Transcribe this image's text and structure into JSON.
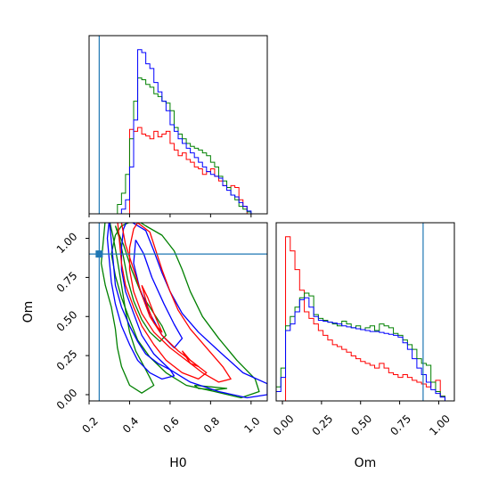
{
  "chart_data": {
    "type": "corner",
    "params": [
      "H0",
      "Om"
    ],
    "truth": {
      "H0": 0.25,
      "Om": 0.9
    },
    "truth_color": "#1f77b4",
    "series_colors": {
      "red": "#ff0000",
      "green": "#008000",
      "blue": "#0000ff"
    },
    "axes": {
      "H0": {
        "label": "H0",
        "range": [
          0.2,
          1.08
        ],
        "ticks": [
          0.2,
          0.4,
          0.6,
          0.8,
          1.0
        ],
        "tick_labels": [
          "0.2",
          "0.4",
          "0.6",
          "0.8",
          "1.0"
        ]
      },
      "Om": {
        "label": "Om",
        "range": [
          -0.04,
          1.1
        ],
        "ticks": [
          0.0,
          0.25,
          0.5,
          0.75,
          1.0
        ],
        "tick_labels": [
          "0.00",
          "0.25",
          "0.50",
          "0.75",
          "1.00"
        ]
      }
    },
    "hist_H0": {
      "edges": [
        0.2,
        0.22,
        0.24,
        0.26,
        0.28,
        0.3,
        0.32,
        0.34,
        0.36,
        0.38,
        0.4,
        0.42,
        0.44,
        0.46,
        0.48,
        0.5,
        0.52,
        0.54,
        0.56,
        0.58,
        0.6,
        0.62,
        0.64,
        0.66,
        0.68,
        0.7,
        0.72,
        0.74,
        0.76,
        0.78,
        0.8,
        0.82,
        0.84,
        0.86,
        0.88,
        0.9,
        0.92,
        0.94,
        0.96,
        0.98,
        1.0,
        1.02,
        1.04,
        1.06,
        1.08
      ],
      "ymax": 190,
      "series": [
        {
          "color": "red",
          "counts": [
            0,
            0,
            0,
            0,
            0,
            0,
            0,
            0,
            0,
            0,
            90,
            88,
            92,
            85,
            83,
            80,
            88,
            82,
            85,
            88,
            75,
            68,
            62,
            65,
            58,
            55,
            50,
            48,
            42,
            45,
            48,
            40,
            35,
            30,
            28,
            30,
            28,
            15,
            8,
            0,
            0,
            0,
            0,
            0
          ]
        },
        {
          "color": "green",
          "counts": [
            0,
            0,
            0,
            0,
            0,
            0,
            0,
            10,
            22,
            42,
            80,
            120,
            145,
            143,
            138,
            135,
            128,
            125,
            120,
            118,
            110,
            92,
            85,
            80,
            75,
            72,
            70,
            68,
            65,
            62,
            55,
            50,
            40,
            35,
            28,
            20,
            15,
            8,
            5,
            2,
            0,
            0,
            0,
            0
          ]
        },
        {
          "color": "blue",
          "counts": [
            0,
            0,
            0,
            0,
            0,
            0,
            0,
            0,
            5,
            15,
            50,
            100,
            175,
            172,
            160,
            155,
            140,
            130,
            120,
            110,
            95,
            88,
            80,
            75,
            70,
            65,
            60,
            55,
            50,
            45,
            42,
            40,
            38,
            30,
            25,
            20,
            18,
            12,
            8,
            3,
            0,
            0,
            0,
            0
          ]
        }
      ]
    },
    "hist_Om": {
      "edges": [
        -0.04,
        -0.01,
        0.02,
        0.05,
        0.08,
        0.11,
        0.14,
        0.17,
        0.2,
        0.23,
        0.26,
        0.29,
        0.32,
        0.35,
        0.38,
        0.41,
        0.44,
        0.47,
        0.5,
        0.53,
        0.56,
        0.59,
        0.62,
        0.65,
        0.68,
        0.71,
        0.74,
        0.77,
        0.8,
        0.83,
        0.86,
        0.89,
        0.92,
        0.95,
        0.98,
        1.01,
        1.04,
        1.07,
        1.1
      ],
      "ymax": 190,
      "series": [
        {
          "color": "red",
          "counts": [
            0,
            0,
            175,
            160,
            140,
            118,
            95,
            88,
            82,
            75,
            70,
            65,
            60,
            58,
            55,
            52,
            48,
            45,
            42,
            40,
            38,
            35,
            40,
            35,
            30,
            28,
            25,
            28,
            25,
            22,
            20,
            18,
            15,
            20,
            22,
            5,
            0,
            0
          ]
        },
        {
          "color": "green",
          "counts": [
            15,
            35,
            80,
            90,
            100,
            110,
            115,
            112,
            92,
            88,
            86,
            84,
            82,
            80,
            85,
            82,
            78,
            80,
            76,
            78,
            80,
            75,
            82,
            80,
            78,
            72,
            70,
            65,
            60,
            55,
            45,
            40,
            38,
            20,
            10,
            5,
            0,
            0
          ]
        },
        {
          "color": "blue",
          "counts": [
            10,
            25,
            75,
            82,
            95,
            108,
            110,
            100,
            90,
            86,
            85,
            84,
            83,
            82,
            80,
            79,
            78,
            77,
            76,
            75,
            74,
            74,
            73,
            72,
            71,
            70,
            68,
            62,
            55,
            45,
            35,
            28,
            20,
            12,
            8,
            4,
            0,
            0
          ]
        }
      ]
    },
    "contours": [
      {
        "color": "green",
        "points": [
          [
            0.43,
            1.12
          ],
          [
            0.48,
            1.08
          ],
          [
            0.56,
            1.02
          ],
          [
            0.62,
            0.92
          ],
          [
            0.66,
            0.8
          ],
          [
            0.7,
            0.66
          ],
          [
            0.76,
            0.5
          ],
          [
            0.84,
            0.36
          ],
          [
            0.93,
            0.22
          ],
          [
            1.02,
            0.1
          ],
          [
            1.04,
            0.02
          ],
          [
            0.95,
            -0.02
          ],
          [
            0.82,
            0.02
          ],
          [
            0.68,
            0.06
          ],
          [
            0.58,
            0.14
          ],
          [
            0.5,
            0.24
          ],
          [
            0.44,
            0.35
          ],
          [
            0.4,
            0.48
          ],
          [
            0.36,
            0.62
          ],
          [
            0.33,
            0.76
          ],
          [
            0.31,
            0.9
          ],
          [
            0.33,
            1.02
          ],
          [
            0.36,
            1.08
          ],
          [
            0.43,
            1.12
          ]
        ]
      },
      {
        "color": "green",
        "points": [
          [
            0.28,
            1.12
          ],
          [
            0.27,
            0.98
          ],
          [
            0.26,
            0.84
          ],
          [
            0.28,
            0.7
          ],
          [
            0.31,
            0.56
          ],
          [
            0.33,
            0.42
          ],
          [
            0.34,
            0.3
          ],
          [
            0.36,
            0.18
          ],
          [
            0.4,
            0.06
          ],
          [
            0.46,
            0.01
          ],
          [
            0.52,
            0.06
          ],
          [
            0.48,
            0.16
          ],
          [
            0.43,
            0.28
          ],
          [
            0.4,
            0.4
          ],
          [
            0.38,
            0.54
          ],
          [
            0.36,
            0.7
          ],
          [
            0.34,
            0.86
          ],
          [
            0.32,
            1.0
          ],
          [
            0.3,
            1.12
          ]
        ]
      },
      {
        "color": "green",
        "points": [
          [
            0.33,
            1.08
          ],
          [
            0.37,
            0.96
          ],
          [
            0.41,
            0.8
          ],
          [
            0.46,
            0.64
          ],
          [
            0.52,
            0.52
          ],
          [
            0.56,
            0.44
          ],
          [
            0.58,
            0.38
          ],
          [
            0.55,
            0.34
          ],
          [
            0.5,
            0.4
          ],
          [
            0.46,
            0.48
          ],
          [
            0.42,
            0.6
          ],
          [
            0.39,
            0.74
          ],
          [
            0.37,
            0.88
          ],
          [
            0.35,
            1.0
          ],
          [
            0.33,
            1.08
          ]
        ]
      },
      {
        "color": "green",
        "points": [
          [
            0.72,
            0.06
          ],
          [
            0.8,
            0.05
          ],
          [
            0.88,
            0.04
          ],
          [
            0.82,
            0.03
          ],
          [
            0.74,
            0.04
          ],
          [
            0.72,
            0.06
          ]
        ]
      },
      {
        "color": "blue",
        "points": [
          [
            0.39,
            1.12
          ],
          [
            0.48,
            1.05
          ],
          [
            0.52,
            0.92
          ],
          [
            0.56,
            0.78
          ],
          [
            0.6,
            0.66
          ],
          [
            0.66,
            0.52
          ],
          [
            0.74,
            0.4
          ],
          [
            0.84,
            0.28
          ],
          [
            0.96,
            0.14
          ],
          [
            1.08,
            0.07
          ],
          [
            1.08,
            0.0
          ],
          [
            0.98,
            -0.02
          ],
          [
            0.84,
            0.02
          ],
          [
            0.7,
            0.08
          ],
          [
            0.6,
            0.16
          ],
          [
            0.52,
            0.26
          ],
          [
            0.46,
            0.38
          ],
          [
            0.42,
            0.52
          ],
          [
            0.38,
            0.66
          ],
          [
            0.36,
            0.8
          ],
          [
            0.36,
            0.94
          ],
          [
            0.37,
            1.06
          ],
          [
            0.39,
            1.12
          ]
        ]
      },
      {
        "color": "blue",
        "points": [
          [
            0.3,
            1.12
          ],
          [
            0.31,
            0.98
          ],
          [
            0.32,
            0.84
          ],
          [
            0.33,
            0.7
          ],
          [
            0.36,
            0.56
          ],
          [
            0.4,
            0.44
          ],
          [
            0.44,
            0.34
          ],
          [
            0.48,
            0.26
          ],
          [
            0.54,
            0.2
          ],
          [
            0.6,
            0.16
          ],
          [
            0.62,
            0.12
          ],
          [
            0.56,
            0.1
          ],
          [
            0.5,
            0.14
          ],
          [
            0.44,
            0.22
          ],
          [
            0.4,
            0.32
          ],
          [
            0.36,
            0.44
          ],
          [
            0.33,
            0.58
          ],
          [
            0.31,
            0.72
          ],
          [
            0.3,
            0.86
          ],
          [
            0.29,
            1.0
          ],
          [
            0.3,
            1.12
          ]
        ]
      },
      {
        "color": "blue",
        "points": [
          [
            0.43,
            0.99
          ],
          [
            0.47,
            0.9
          ],
          [
            0.51,
            0.75
          ],
          [
            0.57,
            0.58
          ],
          [
            0.62,
            0.45
          ],
          [
            0.66,
            0.36
          ],
          [
            0.62,
            0.3
          ],
          [
            0.56,
            0.38
          ],
          [
            0.5,
            0.52
          ],
          [
            0.45,
            0.68
          ],
          [
            0.42,
            0.84
          ],
          [
            0.43,
            0.99
          ]
        ]
      },
      {
        "color": "red",
        "points": [
          [
            0.44,
            1.1
          ],
          [
            0.5,
            1.04
          ],
          [
            0.53,
            0.92
          ],
          [
            0.56,
            0.8
          ],
          [
            0.6,
            0.66
          ],
          [
            0.64,
            0.54
          ],
          [
            0.7,
            0.42
          ],
          [
            0.78,
            0.3
          ],
          [
            0.86,
            0.18
          ],
          [
            0.9,
            0.1
          ],
          [
            0.84,
            0.08
          ],
          [
            0.76,
            0.14
          ],
          [
            0.68,
            0.22
          ],
          [
            0.6,
            0.3
          ],
          [
            0.52,
            0.4
          ],
          [
            0.46,
            0.52
          ],
          [
            0.42,
            0.66
          ],
          [
            0.4,
            0.8
          ],
          [
            0.4,
            0.94
          ],
          [
            0.42,
            1.06
          ],
          [
            0.44,
            1.1
          ]
        ]
      },
      {
        "color": "red",
        "points": [
          [
            0.34,
            1.12
          ],
          [
            0.35,
            0.98
          ],
          [
            0.36,
            0.84
          ],
          [
            0.38,
            0.7
          ],
          [
            0.42,
            0.56
          ],
          [
            0.46,
            0.44
          ],
          [
            0.52,
            0.32
          ],
          [
            0.58,
            0.22
          ],
          [
            0.66,
            0.14
          ],
          [
            0.74,
            0.1
          ],
          [
            0.78,
            0.14
          ],
          [
            0.72,
            0.2
          ],
          [
            0.64,
            0.28
          ],
          [
            0.56,
            0.38
          ],
          [
            0.5,
            0.5
          ],
          [
            0.46,
            0.64
          ],
          [
            0.42,
            0.8
          ],
          [
            0.38,
            0.96
          ],
          [
            0.36,
            1.1
          ]
        ]
      },
      {
        "color": "red",
        "points": [
          [
            0.46,
            0.7
          ],
          [
            0.49,
            0.56
          ],
          [
            0.52,
            0.46
          ],
          [
            0.56,
            0.4
          ],
          [
            0.52,
            0.52
          ],
          [
            0.49,
            0.62
          ],
          [
            0.46,
            0.7
          ]
        ]
      },
      {
        "color": "red",
        "points": [
          [
            0.66,
            0.28
          ],
          [
            0.7,
            0.22
          ],
          [
            0.74,
            0.18
          ],
          [
            0.7,
            0.2
          ],
          [
            0.66,
            0.28
          ]
        ]
      }
    ]
  }
}
